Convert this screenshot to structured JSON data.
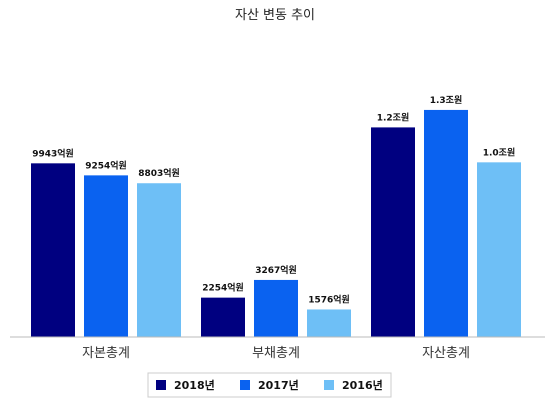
{
  "chart_data": {
    "type": "bar",
    "title": "자산 변동 추이",
    "categories": [
      "자본총계",
      "부채총계",
      "자산총계"
    ],
    "unit": "억원",
    "ylim": [
      0,
      15000
    ],
    "series": [
      {
        "name": "2018년",
        "color": "#000080",
        "values": [
          9943,
          2254,
          12000
        ],
        "labels": [
          "9943억원",
          "2254억원",
          "1.2조원"
        ]
      },
      {
        "name": "2017년",
        "color": "#0a62f0",
        "values": [
          9254,
          3267,
          13000
        ],
        "labels": [
          "9254억원",
          "3267억원",
          "1.3조원"
        ]
      },
      {
        "name": "2016년",
        "color": "#6ebff6",
        "values": [
          8803,
          1576,
          10000
        ],
        "labels": [
          "8803억원",
          "1576억원",
          "1.0조원"
        ]
      }
    ],
    "legend_position": "bottom",
    "grid": false
  }
}
